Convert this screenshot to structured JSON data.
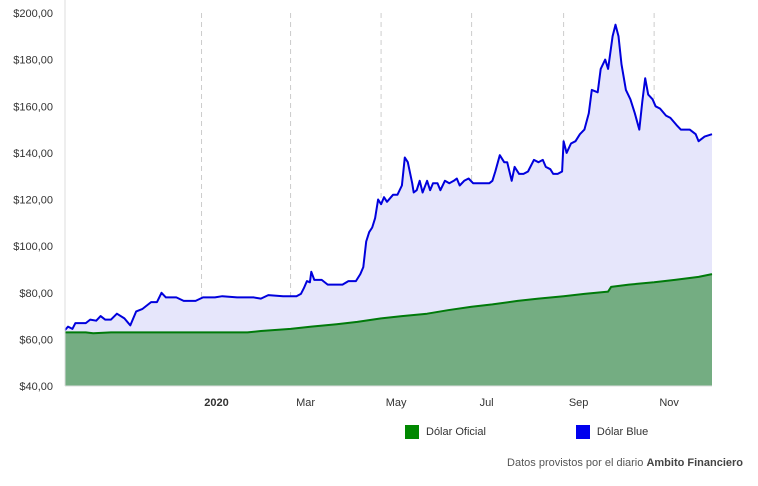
{
  "chart_data": {
    "type": "area",
    "x_type": "date",
    "x_range": [
      "2019-10-01",
      "2020-12-10"
    ],
    "ylim": [
      40,
      200
    ],
    "y_ticks": [
      40,
      60,
      80,
      100,
      120,
      140,
      160,
      180,
      200
    ],
    "y_tick_labels": [
      "$40,00",
      "$60,00",
      "$80,00",
      "$100,00",
      "$120,00",
      "$140,00",
      "$160,00",
      "$180,00",
      "$200,00"
    ],
    "x_ticks": [
      {
        "date": "2020-01-01",
        "label": "2020",
        "bold": true
      },
      {
        "date": "2020-03-01",
        "label": "Mar",
        "bold": false
      },
      {
        "date": "2020-05-01",
        "label": "May",
        "bold": false
      },
      {
        "date": "2020-07-01",
        "label": "Jul",
        "bold": false
      },
      {
        "date": "2020-09-01",
        "label": "Sep",
        "bold": false
      },
      {
        "date": "2020-11-01",
        "label": "Nov",
        "bold": false
      }
    ],
    "grid": "vertical-dashed",
    "legend_position": "bottom-right",
    "series": [
      {
        "name": "Dólar Oficial",
        "color": "#007a0a",
        "fill": "#74ad82",
        "points": [
          [
            "2019-10-01",
            63
          ],
          [
            "2019-10-15",
            63
          ],
          [
            "2019-10-20",
            62.6
          ],
          [
            "2019-11-01",
            63
          ],
          [
            "2019-12-01",
            63
          ],
          [
            "2020-01-01",
            63
          ],
          [
            "2020-01-15",
            63
          ],
          [
            "2020-02-01",
            63
          ],
          [
            "2020-02-10",
            63.6
          ],
          [
            "2020-03-01",
            64.5
          ],
          [
            "2020-03-15",
            65.5
          ],
          [
            "2020-04-01",
            66.5
          ],
          [
            "2020-04-15",
            67.5
          ],
          [
            "2020-05-01",
            69
          ],
          [
            "2020-05-15",
            70
          ],
          [
            "2020-06-01",
            71
          ],
          [
            "2020-06-15",
            72.5
          ],
          [
            "2020-07-01",
            74
          ],
          [
            "2020-07-15",
            75
          ],
          [
            "2020-08-01",
            76.5
          ],
          [
            "2020-08-15",
            77.5
          ],
          [
            "2020-09-01",
            78.5
          ],
          [
            "2020-09-15",
            79.5
          ],
          [
            "2020-10-01",
            80.5
          ],
          [
            "2020-10-03",
            82.5
          ],
          [
            "2020-10-15",
            83.5
          ],
          [
            "2020-11-01",
            84.5
          ],
          [
            "2020-11-15",
            85.5
          ],
          [
            "2020-12-01",
            86.8
          ],
          [
            "2020-12-10",
            88
          ]
        ]
      },
      {
        "name": "Dólar Blue",
        "color": "#0000dd",
        "fill": "#e6e6fb",
        "points": [
          [
            "2019-10-01",
            64
          ],
          [
            "2019-10-03",
            65.5
          ],
          [
            "2019-10-06",
            64.5
          ],
          [
            "2019-10-08",
            67
          ],
          [
            "2019-10-15",
            67
          ],
          [
            "2019-10-18",
            68.5
          ],
          [
            "2019-10-22",
            68
          ],
          [
            "2019-10-25",
            70
          ],
          [
            "2019-10-28",
            68.5
          ],
          [
            "2019-11-01",
            68.5
          ],
          [
            "2019-11-05",
            71
          ],
          [
            "2019-11-10",
            69
          ],
          [
            "2019-11-14",
            66
          ],
          [
            "2019-11-18",
            72
          ],
          [
            "2019-11-22",
            73
          ],
          [
            "2019-11-28",
            76
          ],
          [
            "2019-12-02",
            76
          ],
          [
            "2019-12-05",
            80
          ],
          [
            "2019-12-08",
            78
          ],
          [
            "2019-12-15",
            78
          ],
          [
            "2019-12-20",
            76.5
          ],
          [
            "2019-12-28",
            76.5
          ],
          [
            "2020-01-02",
            78
          ],
          [
            "2020-01-10",
            78
          ],
          [
            "2020-01-15",
            78.5
          ],
          [
            "2020-01-25",
            78
          ],
          [
            "2020-02-05",
            78
          ],
          [
            "2020-02-10",
            77.5
          ],
          [
            "2020-02-15",
            79
          ],
          [
            "2020-02-25",
            78.5
          ],
          [
            "2020-03-01",
            78.5
          ],
          [
            "2020-03-05",
            78.5
          ],
          [
            "2020-03-08",
            79.5
          ],
          [
            "2020-03-10",
            82
          ],
          [
            "2020-03-12",
            85
          ],
          [
            "2020-03-14",
            84.5
          ],
          [
            "2020-03-15",
            89
          ],
          [
            "2020-03-17",
            85.5
          ],
          [
            "2020-03-22",
            85.5
          ],
          [
            "2020-03-26",
            83.5
          ],
          [
            "2020-04-05",
            83.5
          ],
          [
            "2020-04-09",
            85
          ],
          [
            "2020-04-14",
            85
          ],
          [
            "2020-04-17",
            88
          ],
          [
            "2020-04-19",
            91
          ],
          [
            "2020-04-21",
            102
          ],
          [
            "2020-04-23",
            106
          ],
          [
            "2020-04-25",
            108
          ],
          [
            "2020-04-27",
            112
          ],
          [
            "2020-04-29",
            120
          ],
          [
            "2020-05-01",
            118
          ],
          [
            "2020-05-03",
            121
          ],
          [
            "2020-05-05",
            119
          ],
          [
            "2020-05-09",
            122
          ],
          [
            "2020-05-12",
            122
          ],
          [
            "2020-05-15",
            126
          ],
          [
            "2020-05-17",
            138
          ],
          [
            "2020-05-19",
            136
          ],
          [
            "2020-05-22",
            127
          ],
          [
            "2020-05-23",
            123
          ],
          [
            "2020-05-25",
            124
          ],
          [
            "2020-05-27",
            128
          ],
          [
            "2020-05-29",
            123
          ],
          [
            "2020-06-01",
            128
          ],
          [
            "2020-06-03",
            124
          ],
          [
            "2020-06-05",
            127
          ],
          [
            "2020-06-08",
            127
          ],
          [
            "2020-06-10",
            124
          ],
          [
            "2020-06-13",
            128
          ],
          [
            "2020-06-16",
            127
          ],
          [
            "2020-06-19",
            128
          ],
          [
            "2020-06-21",
            129
          ],
          [
            "2020-06-23",
            126
          ],
          [
            "2020-06-26",
            128
          ],
          [
            "2020-06-29",
            129
          ],
          [
            "2020-07-02",
            127
          ],
          [
            "2020-07-05",
            127
          ],
          [
            "2020-07-09",
            127
          ],
          [
            "2020-07-13",
            127
          ],
          [
            "2020-07-15",
            128
          ],
          [
            "2020-07-17",
            132
          ],
          [
            "2020-07-20",
            139
          ],
          [
            "2020-07-23",
            136
          ],
          [
            "2020-07-25",
            136
          ],
          [
            "2020-07-28",
            128
          ],
          [
            "2020-07-30",
            134
          ],
          [
            "2020-08-02",
            131
          ],
          [
            "2020-08-05",
            131
          ],
          [
            "2020-08-08",
            132
          ],
          [
            "2020-08-12",
            137
          ],
          [
            "2020-08-15",
            136
          ],
          [
            "2020-08-18",
            137
          ],
          [
            "2020-08-20",
            134
          ],
          [
            "2020-08-23",
            133
          ],
          [
            "2020-08-25",
            131
          ],
          [
            "2020-08-28",
            131
          ],
          [
            "2020-08-31",
            132
          ],
          [
            "2020-09-01",
            145
          ],
          [
            "2020-09-03",
            140
          ],
          [
            "2020-09-06",
            144
          ],
          [
            "2020-09-09",
            145
          ],
          [
            "2020-09-12",
            148
          ],
          [
            "2020-09-15",
            150
          ],
          [
            "2020-09-18",
            157
          ],
          [
            "2020-09-20",
            167
          ],
          [
            "2020-09-24",
            166
          ],
          [
            "2020-09-26",
            176
          ],
          [
            "2020-09-29",
            180
          ],
          [
            "2020-10-01",
            176
          ],
          [
            "2020-10-04",
            190
          ],
          [
            "2020-10-06",
            195
          ],
          [
            "2020-10-08",
            190
          ],
          [
            "2020-10-10",
            178
          ],
          [
            "2020-10-13",
            167
          ],
          [
            "2020-10-16",
            163
          ],
          [
            "2020-10-19",
            157
          ],
          [
            "2020-10-22",
            150
          ],
          [
            "2020-10-24",
            162
          ],
          [
            "2020-10-26",
            172
          ],
          [
            "2020-10-28",
            165
          ],
          [
            "2020-10-31",
            163
          ],
          [
            "2020-11-02",
            160
          ],
          [
            "2020-11-05",
            159
          ],
          [
            "2020-11-09",
            156
          ],
          [
            "2020-11-12",
            155
          ],
          [
            "2020-11-16",
            152
          ],
          [
            "2020-11-19",
            150
          ],
          [
            "2020-11-25",
            150
          ],
          [
            "2020-11-29",
            148
          ],
          [
            "2020-12-01",
            145
          ],
          [
            "2020-12-05",
            147
          ],
          [
            "2020-12-10",
            148
          ]
        ]
      }
    ]
  },
  "legend": [
    {
      "label": "Dólar Oficial",
      "color": "#008800"
    },
    {
      "label": "Dólar Blue",
      "color": "#0000ee"
    }
  ],
  "source": {
    "prefix": "Datos provistos por el diario ",
    "name": "Ambito Financiero"
  }
}
